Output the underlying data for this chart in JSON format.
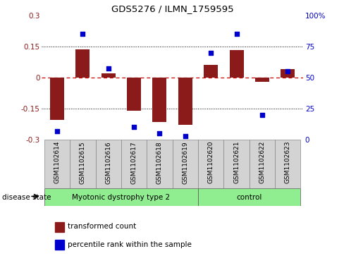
{
  "title": "GDS5276 / ILMN_1759595",
  "samples": [
    "GSM1102614",
    "GSM1102615",
    "GSM1102616",
    "GSM1102617",
    "GSM1102618",
    "GSM1102619",
    "GSM1102620",
    "GSM1102621",
    "GSM1102622",
    "GSM1102623"
  ],
  "transformed_count": [
    -0.205,
    0.135,
    0.02,
    -0.16,
    -0.215,
    -0.23,
    0.06,
    0.132,
    -0.02,
    0.04
  ],
  "percentile_rank": [
    7,
    85,
    57,
    10,
    5,
    3,
    70,
    85,
    20,
    55
  ],
  "bar_color": "#8B1A1A",
  "scatter_color": "#0000CC",
  "ylim_left": [
    -0.3,
    0.3
  ],
  "ylim_right": [
    0,
    100
  ],
  "yticks_left": [
    -0.3,
    -0.15,
    0,
    0.15,
    0.3
  ],
  "yticks_right": [
    0,
    25,
    50,
    75,
    100
  ],
  "ytick_labels_left": [
    "-0.3",
    "-0.15",
    "0",
    "0.15",
    "0.3"
  ],
  "ytick_labels_right": [
    "0",
    "25",
    "50",
    "75",
    "100%"
  ],
  "hline_color": "#CC0000",
  "dotted_color": "black",
  "bg_color": "#FFFFFF",
  "disease_state_label": "disease state",
  "group1_label": "Myotonic dystrophy type 2",
  "group1_count": 6,
  "group2_label": "control",
  "group2_count": 4,
  "group_color": "#90EE90",
  "sample_box_color": "#D3D3D3",
  "legend_entries": [
    "transformed count",
    "percentile rank within the sample"
  ],
  "legend_colors": [
    "#8B1A1A",
    "#0000CC"
  ]
}
